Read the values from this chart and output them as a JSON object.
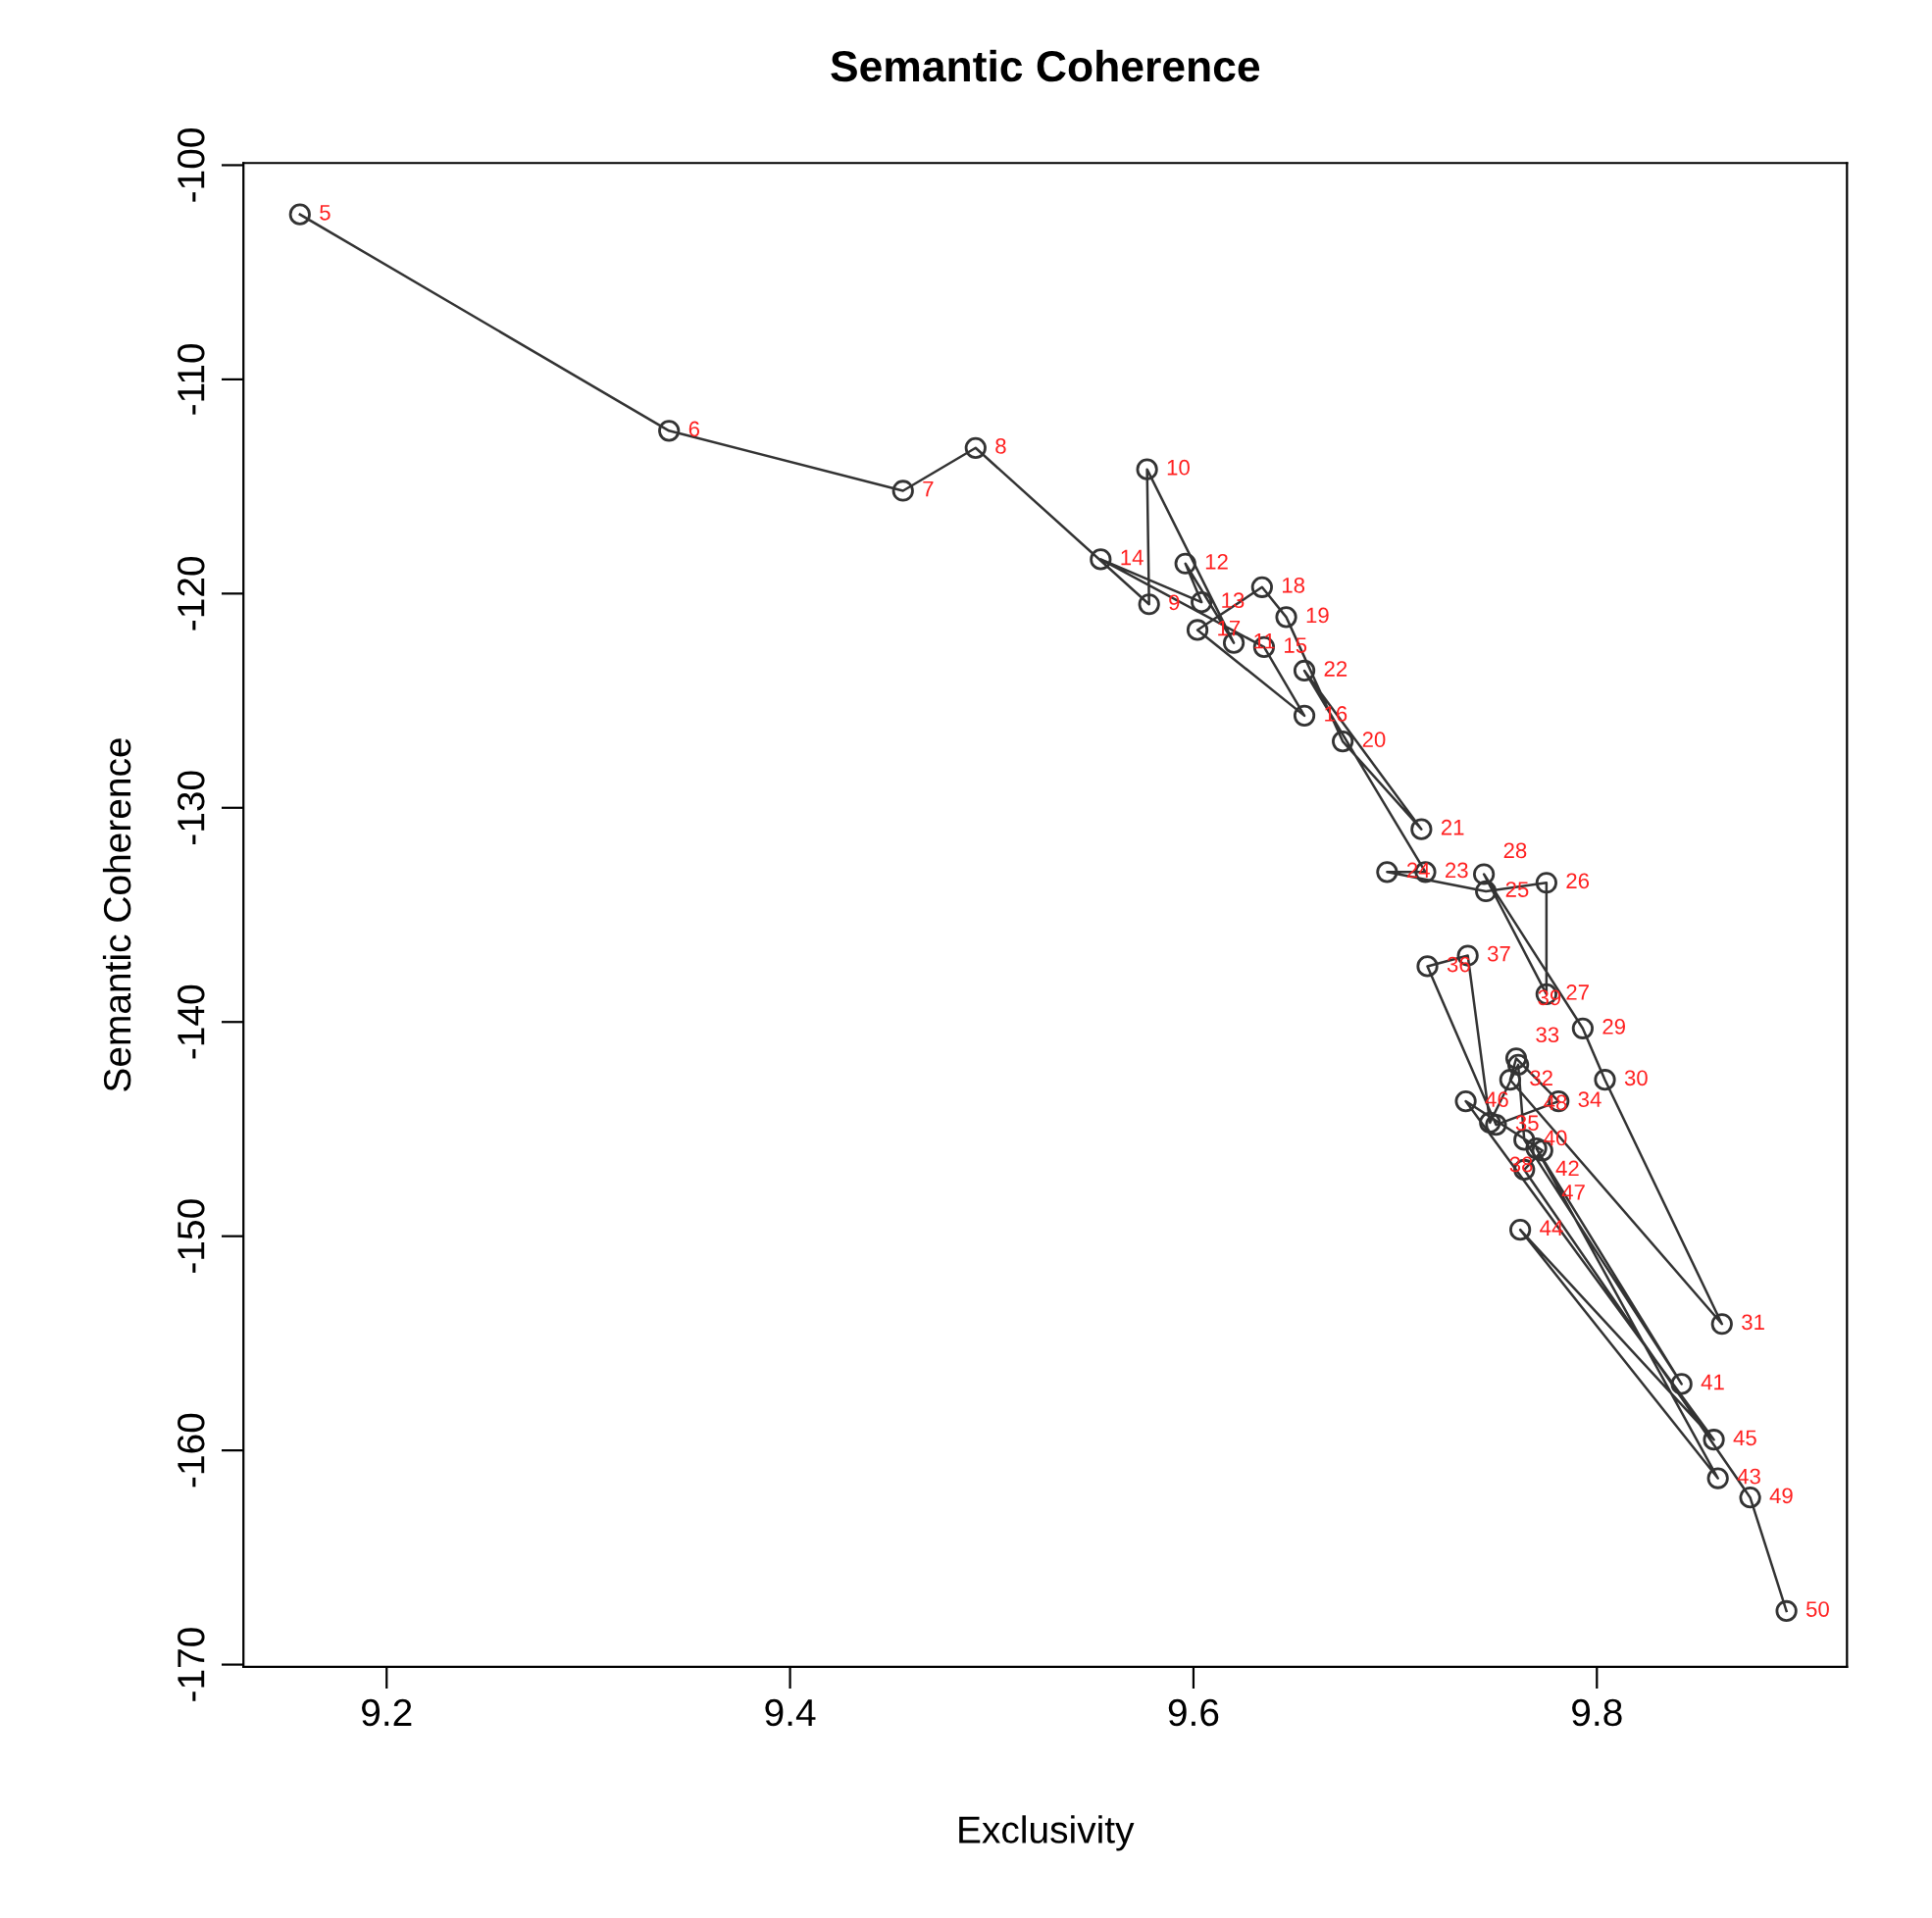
{
  "chart_data": {
    "type": "line",
    "title": "Semantic Coherence",
    "xlabel": "Exclusivity",
    "ylabel": "Semantic Coherence",
    "xlim": [
      9.129,
      9.924
    ],
    "ylim": [
      -170.1,
      -99.9
    ],
    "xticks": [
      9.2,
      9.4,
      9.6,
      9.8
    ],
    "yticks": [
      -100,
      -110,
      -120,
      -130,
      -140,
      -150,
      -160,
      -170
    ],
    "marker": "circle",
    "grid": false,
    "legend": false,
    "series": [
      {
        "color": "#333333",
        "x": [
          9.157,
          9.34,
          9.456,
          9.492,
          9.578,
          9.577,
          9.62,
          9.596,
          9.604,
          9.554,
          9.635,
          9.655,
          9.602,
          9.634,
          9.646,
          9.674,
          9.713,
          9.655,
          9.715,
          9.696,
          9.745,
          9.775,
          9.775,
          9.744,
          9.793,
          9.804,
          9.862,
          9.757,
          9.76,
          9.781,
          9.75,
          9.716,
          9.736,
          9.747,
          9.761,
          9.764,
          9.842,
          9.77,
          9.86,
          9.762,
          9.858,
          9.735,
          9.773,
          9.764,
          9.876,
          9.894
        ],
        "values": [
          -102.3,
          -112.4,
          -115.2,
          -113.2,
          -120.5,
          -114.2,
          -122.3,
          -118.6,
          -120.4,
          -118.4,
          -122.5,
          -125.7,
          -121.7,
          -119.7,
          -121.1,
          -126.9,
          -131.0,
          -123.6,
          -133.0,
          -133.0,
          -133.9,
          -133.5,
          -138.7,
          -133.1,
          -140.3,
          -142.7,
          -154.1,
          -142.7,
          -141.7,
          -143.7,
          -144.8,
          -137.4,
          -136.9,
          -144.7,
          -142.0,
          -145.5,
          -156.9,
          -145.9,
          -161.3,
          -149.7,
          -159.5,
          -143.7,
          -146.0,
          -146.9,
          -162.2,
          -167.5
        ]
      }
    ],
    "annotations": [
      {
        "text": "5",
        "x": 9.157,
        "y": -102.3
      },
      {
        "text": "6",
        "x": 9.34,
        "y": -112.4
      },
      {
        "text": "7",
        "x": 9.456,
        "y": -115.2
      },
      {
        "text": "8",
        "x": 9.492,
        "y": -113.2
      },
      {
        "text": "9",
        "x": 9.578,
        "y": -120.5
      },
      {
        "text": "10",
        "x": 9.577,
        "y": -114.2
      },
      {
        "text": "11",
        "x": 9.62,
        "y": -122.3
      },
      {
        "text": "12",
        "x": 9.596,
        "y": -118.6
      },
      {
        "text": "13",
        "x": 9.604,
        "y": -120.4
      },
      {
        "text": "14",
        "x": 9.554,
        "y": -118.4
      },
      {
        "text": "15",
        "x": 9.635,
        "y": -122.5
      },
      {
        "text": "16",
        "x": 9.655,
        "y": -125.7
      },
      {
        "text": "17",
        "x": 9.602,
        "y": -121.7
      },
      {
        "text": "18",
        "x": 9.634,
        "y": -119.7
      },
      {
        "text": "19",
        "x": 9.646,
        "y": -121.1
      },
      {
        "text": "20",
        "x": 9.674,
        "y": -126.9
      },
      {
        "text": "21",
        "x": 9.713,
        "y": -131.0
      },
      {
        "text": "22",
        "x": 9.655,
        "y": -123.6
      },
      {
        "text": "23",
        "x": 9.715,
        "y": -133.0
      },
      {
        "text": "24",
        "x": 9.696,
        "y": -133.0
      },
      {
        "text": "25",
        "x": 9.745,
        "y": -133.9
      },
      {
        "text": "26",
        "x": 9.775,
        "y": -133.5
      },
      {
        "text": "27",
        "x": 9.775,
        "y": -138.7
      },
      {
        "text": "28",
        "x": 9.744,
        "y": -133.1
      },
      {
        "text": "29",
        "x": 9.793,
        "y": -140.3
      },
      {
        "text": "30",
        "x": 9.804,
        "y": -142.7
      },
      {
        "text": "31",
        "x": 9.862,
        "y": -154.1
      },
      {
        "text": "32",
        "x": 9.757,
        "y": -142.7
      },
      {
        "text": "33",
        "x": 9.76,
        "y": -141.7
      },
      {
        "text": "34",
        "x": 9.781,
        "y": -143.7
      },
      {
        "text": "35",
        "x": 9.75,
        "y": -144.8
      },
      {
        "text": "36",
        "x": 9.716,
        "y": -137.4
      },
      {
        "text": "37",
        "x": 9.736,
        "y": -136.9
      },
      {
        "text": "38",
        "x": 9.747,
        "y": -144.7
      },
      {
        "text": "39",
        "x": 9.761,
        "y": -142.0
      },
      {
        "text": "40",
        "x": 9.764,
        "y": -145.5
      },
      {
        "text": "41",
        "x": 9.842,
        "y": -156.9
      },
      {
        "text": "42",
        "x": 9.77,
        "y": -145.9
      },
      {
        "text": "43",
        "x": 9.86,
        "y": -161.3
      },
      {
        "text": "44",
        "x": 9.762,
        "y": -149.7
      },
      {
        "text": "45",
        "x": 9.858,
        "y": -159.5
      },
      {
        "text": "46",
        "x": 9.735,
        "y": -143.7
      },
      {
        "text": "47",
        "x": 9.773,
        "y": -146.0
      },
      {
        "text": "48",
        "x": 9.764,
        "y": -146.9
      },
      {
        "text": "49",
        "x": 9.876,
        "y": -162.2
      },
      {
        "text": "50",
        "x": 9.894,
        "y": -167.5
      }
    ]
  }
}
